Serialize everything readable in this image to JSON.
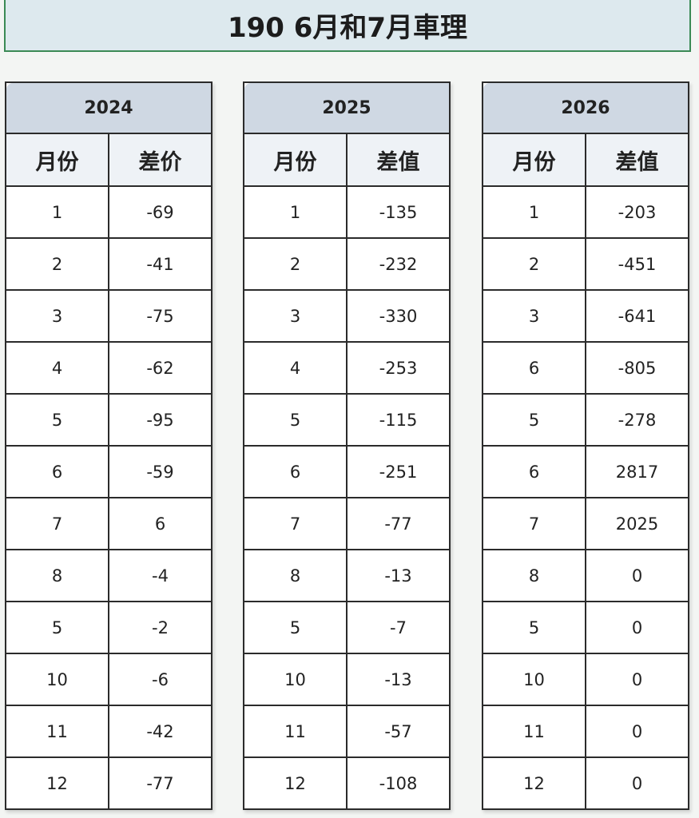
{
  "header": {
    "title": "190 6月和7月車理"
  },
  "tables": [
    {
      "year": "2024",
      "columns": [
        "月份",
        "差价"
      ],
      "rows": [
        [
          "1",
          -69
        ],
        [
          "2",
          -41
        ],
        [
          "3",
          -75
        ],
        [
          "4",
          -62
        ],
        [
          "5",
          -95
        ],
        [
          "6",
          -59
        ],
        [
          "7",
          6
        ],
        [
          "8",
          -4
        ],
        [
          "5",
          -2
        ],
        [
          "10",
          -6
        ],
        [
          "11",
          -42
        ],
        [
          "12",
          -77
        ]
      ]
    },
    {
      "year": "2025",
      "columns": [
        "月份",
        "差值"
      ],
      "rows": [
        [
          "1",
          -135
        ],
        [
          "2",
          -232
        ],
        [
          "3",
          -330
        ],
        [
          "4",
          -253
        ],
        [
          "5",
          -115
        ],
        [
          "6",
          -251
        ],
        [
          "7",
          -77
        ],
        [
          "8",
          -13
        ],
        [
          "5",
          -7
        ],
        [
          "10",
          -13
        ],
        [
          "11",
          -57
        ],
        [
          "12",
          -108
        ]
      ]
    },
    {
      "year": "2026",
      "columns": [
        "月份",
        "差值"
      ],
      "rows": [
        [
          "1",
          -203
        ],
        [
          "2",
          -451
        ],
        [
          "3",
          -641
        ],
        [
          "6",
          -805
        ],
        [
          "5",
          -278
        ],
        [
          "6",
          2817
        ],
        [
          "7",
          2025
        ],
        [
          "8",
          0
        ],
        [
          "5",
          0
        ],
        [
          "10",
          0
        ],
        [
          "11",
          0
        ],
        [
          "12",
          0
        ]
      ]
    }
  ]
}
